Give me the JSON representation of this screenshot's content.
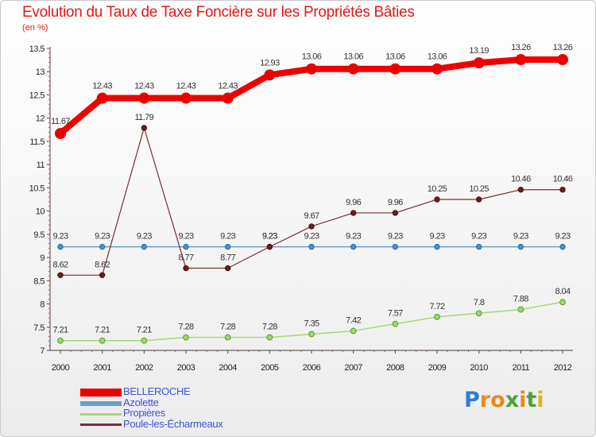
{
  "chart_data": {
    "type": "line",
    "title": "Evolution du Taux de Taxe Foncière sur les Propriétés Bâties",
    "ylabel": "(en %)",
    "xlabel": "",
    "x": [
      "2000",
      "2001",
      "2002",
      "2003",
      "2004",
      "2005",
      "2006",
      "2007",
      "2008",
      "2009",
      "2010",
      "2011",
      "2012"
    ],
    "y_ticks": [
      "7",
      "7.5",
      "8",
      "8.5",
      "9",
      "9.5",
      "10",
      "10.5",
      "11",
      "11.5",
      "12",
      "12.5",
      "13",
      "13.5"
    ],
    "ylim": [
      7,
      13.5
    ],
    "grid": false,
    "legend_position": "bottom-left",
    "series": [
      {
        "name": "BELLEROCHE",
        "color": "#ee0000",
        "values": [
          11.67,
          12.43,
          12.43,
          12.43,
          12.43,
          12.93,
          13.06,
          13.06,
          13.06,
          13.06,
          13.19,
          13.26,
          13.26
        ],
        "labels": [
          "11.67",
          "12.43",
          "12.43",
          "12.43",
          "12.43",
          "12.93",
          "13.06",
          "13.06",
          "13.06",
          "13.06",
          "13.19",
          "13.26",
          "13.26"
        ]
      },
      {
        "name": "Azolette",
        "color": "#6a9ec9",
        "values": [
          9.23,
          9.23,
          9.23,
          9.23,
          9.23,
          9.23,
          9.23,
          9.23,
          9.23,
          9.23,
          9.23,
          9.23,
          9.23
        ],
        "labels": [
          "9.23",
          "9.23",
          "9.23",
          "9.23",
          "9.23",
          "9.23",
          "9.23",
          "9.23",
          "9.23",
          "9.23",
          "9.23",
          "9.23",
          "9.23"
        ]
      },
      {
        "name": "Propières",
        "color": "#a8d878",
        "values": [
          7.21,
          7.21,
          7.21,
          7.28,
          7.28,
          7.28,
          7.35,
          7.42,
          7.57,
          7.72,
          7.8,
          7.88,
          8.04
        ],
        "labels": [
          "7.21",
          "7.21",
          "7.21",
          "7.28",
          "7.28",
          "7.28",
          "7.35",
          "7.42",
          "7.57",
          "7.72",
          "7.8",
          "7.88",
          "8.04"
        ]
      },
      {
        "name": "Poule-les-Écharmeaux",
        "color": "#7a2e2e",
        "values": [
          8.62,
          8.62,
          11.79,
          8.77,
          8.77,
          9.23,
          9.67,
          9.96,
          9.96,
          10.25,
          10.25,
          10.46,
          10.46
        ],
        "labels": [
          "8.62",
          "8.62",
          "11.79",
          "8.77",
          "8.77",
          "9.23",
          "9.67",
          "9.96",
          "9.96",
          "10.25",
          "10.25",
          "10.46",
          "10.46"
        ]
      }
    ]
  },
  "logo": {
    "letters": [
      {
        "ch": "P",
        "color": "#2b7fd0"
      },
      {
        "ch": "r",
        "color": "#e98a1d"
      },
      {
        "ch": "o",
        "color": "#e98a1d"
      },
      {
        "ch": "x",
        "color": "#4aa43a"
      },
      {
        "ch": "i",
        "color": "#e98a1d"
      },
      {
        "ch": "t",
        "color": "#4aa43a"
      },
      {
        "ch": "i",
        "color": "#e0b21d"
      }
    ]
  }
}
